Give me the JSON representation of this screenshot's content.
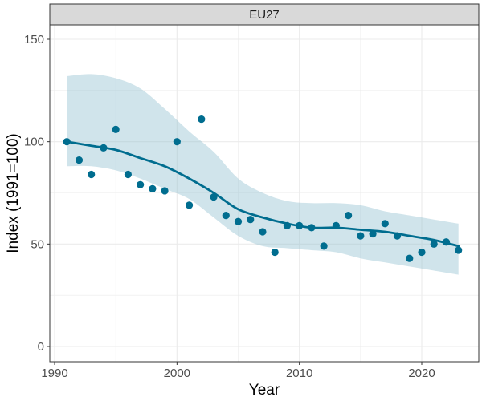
{
  "chart_data": {
    "type": "scatter",
    "panel_title": "EU27",
    "xlabel": "Year",
    "ylabel": "Index (1991=100)",
    "xlim": [
      1990,
      2024
    ],
    "ylim": [
      0,
      155
    ],
    "x_ticks": [
      1990,
      2000,
      2010,
      2020
    ],
    "y_ticks": [
      0,
      50,
      100,
      150
    ],
    "grid": true,
    "legend": "none",
    "colors": {
      "points": "#006d8f",
      "smooth_line": "#006d8f",
      "ribbon": "#8fbfd0",
      "strip_fill": "#d9d9d9",
      "grid": "#ebebeb"
    },
    "series": [
      {
        "type": "scatter",
        "x": [
          1991,
          1992,
          1993,
          1994,
          1995,
          1996,
          1997,
          1998,
          1999,
          2000,
          2001,
          2002,
          2003,
          2004,
          2005,
          2006,
          2007,
          2008,
          2009,
          2010,
          2011,
          2012,
          2013,
          2014,
          2015,
          2016,
          2017,
          2018,
          2019,
          2020,
          2021,
          2022,
          2023
        ],
        "values": [
          100,
          91,
          84,
          97,
          106,
          84,
          79,
          77,
          76,
          100,
          69,
          111,
          73,
          64,
          61,
          62,
          56,
          46,
          59,
          59,
          58,
          49,
          59,
          64,
          54,
          55,
          60,
          54,
          43,
          46,
          50,
          51,
          47
        ]
      },
      {
        "type": "smooth",
        "x": [
          1991,
          1993,
          1995,
          1997,
          1999,
          2001,
          2003,
          2005,
          2007,
          2009,
          2011,
          2013,
          2015,
          2017,
          2019,
          2021,
          2023
        ],
        "values": [
          100,
          98,
          96,
          92,
          88,
          82,
          75,
          67,
          63,
          60,
          58,
          58,
          57,
          56,
          54,
          52,
          49
        ],
        "ribbon_lower": [
          88,
          88,
          86,
          82,
          77,
          72,
          63,
          54,
          49,
          48,
          47,
          46,
          43,
          41,
          39,
          37,
          35
        ],
        "ribbon_upper": [
          132,
          133,
          131,
          126,
          116,
          105,
          95,
          82,
          75,
          71,
          70,
          70,
          69,
          66,
          64,
          62,
          60
        ]
      }
    ]
  }
}
